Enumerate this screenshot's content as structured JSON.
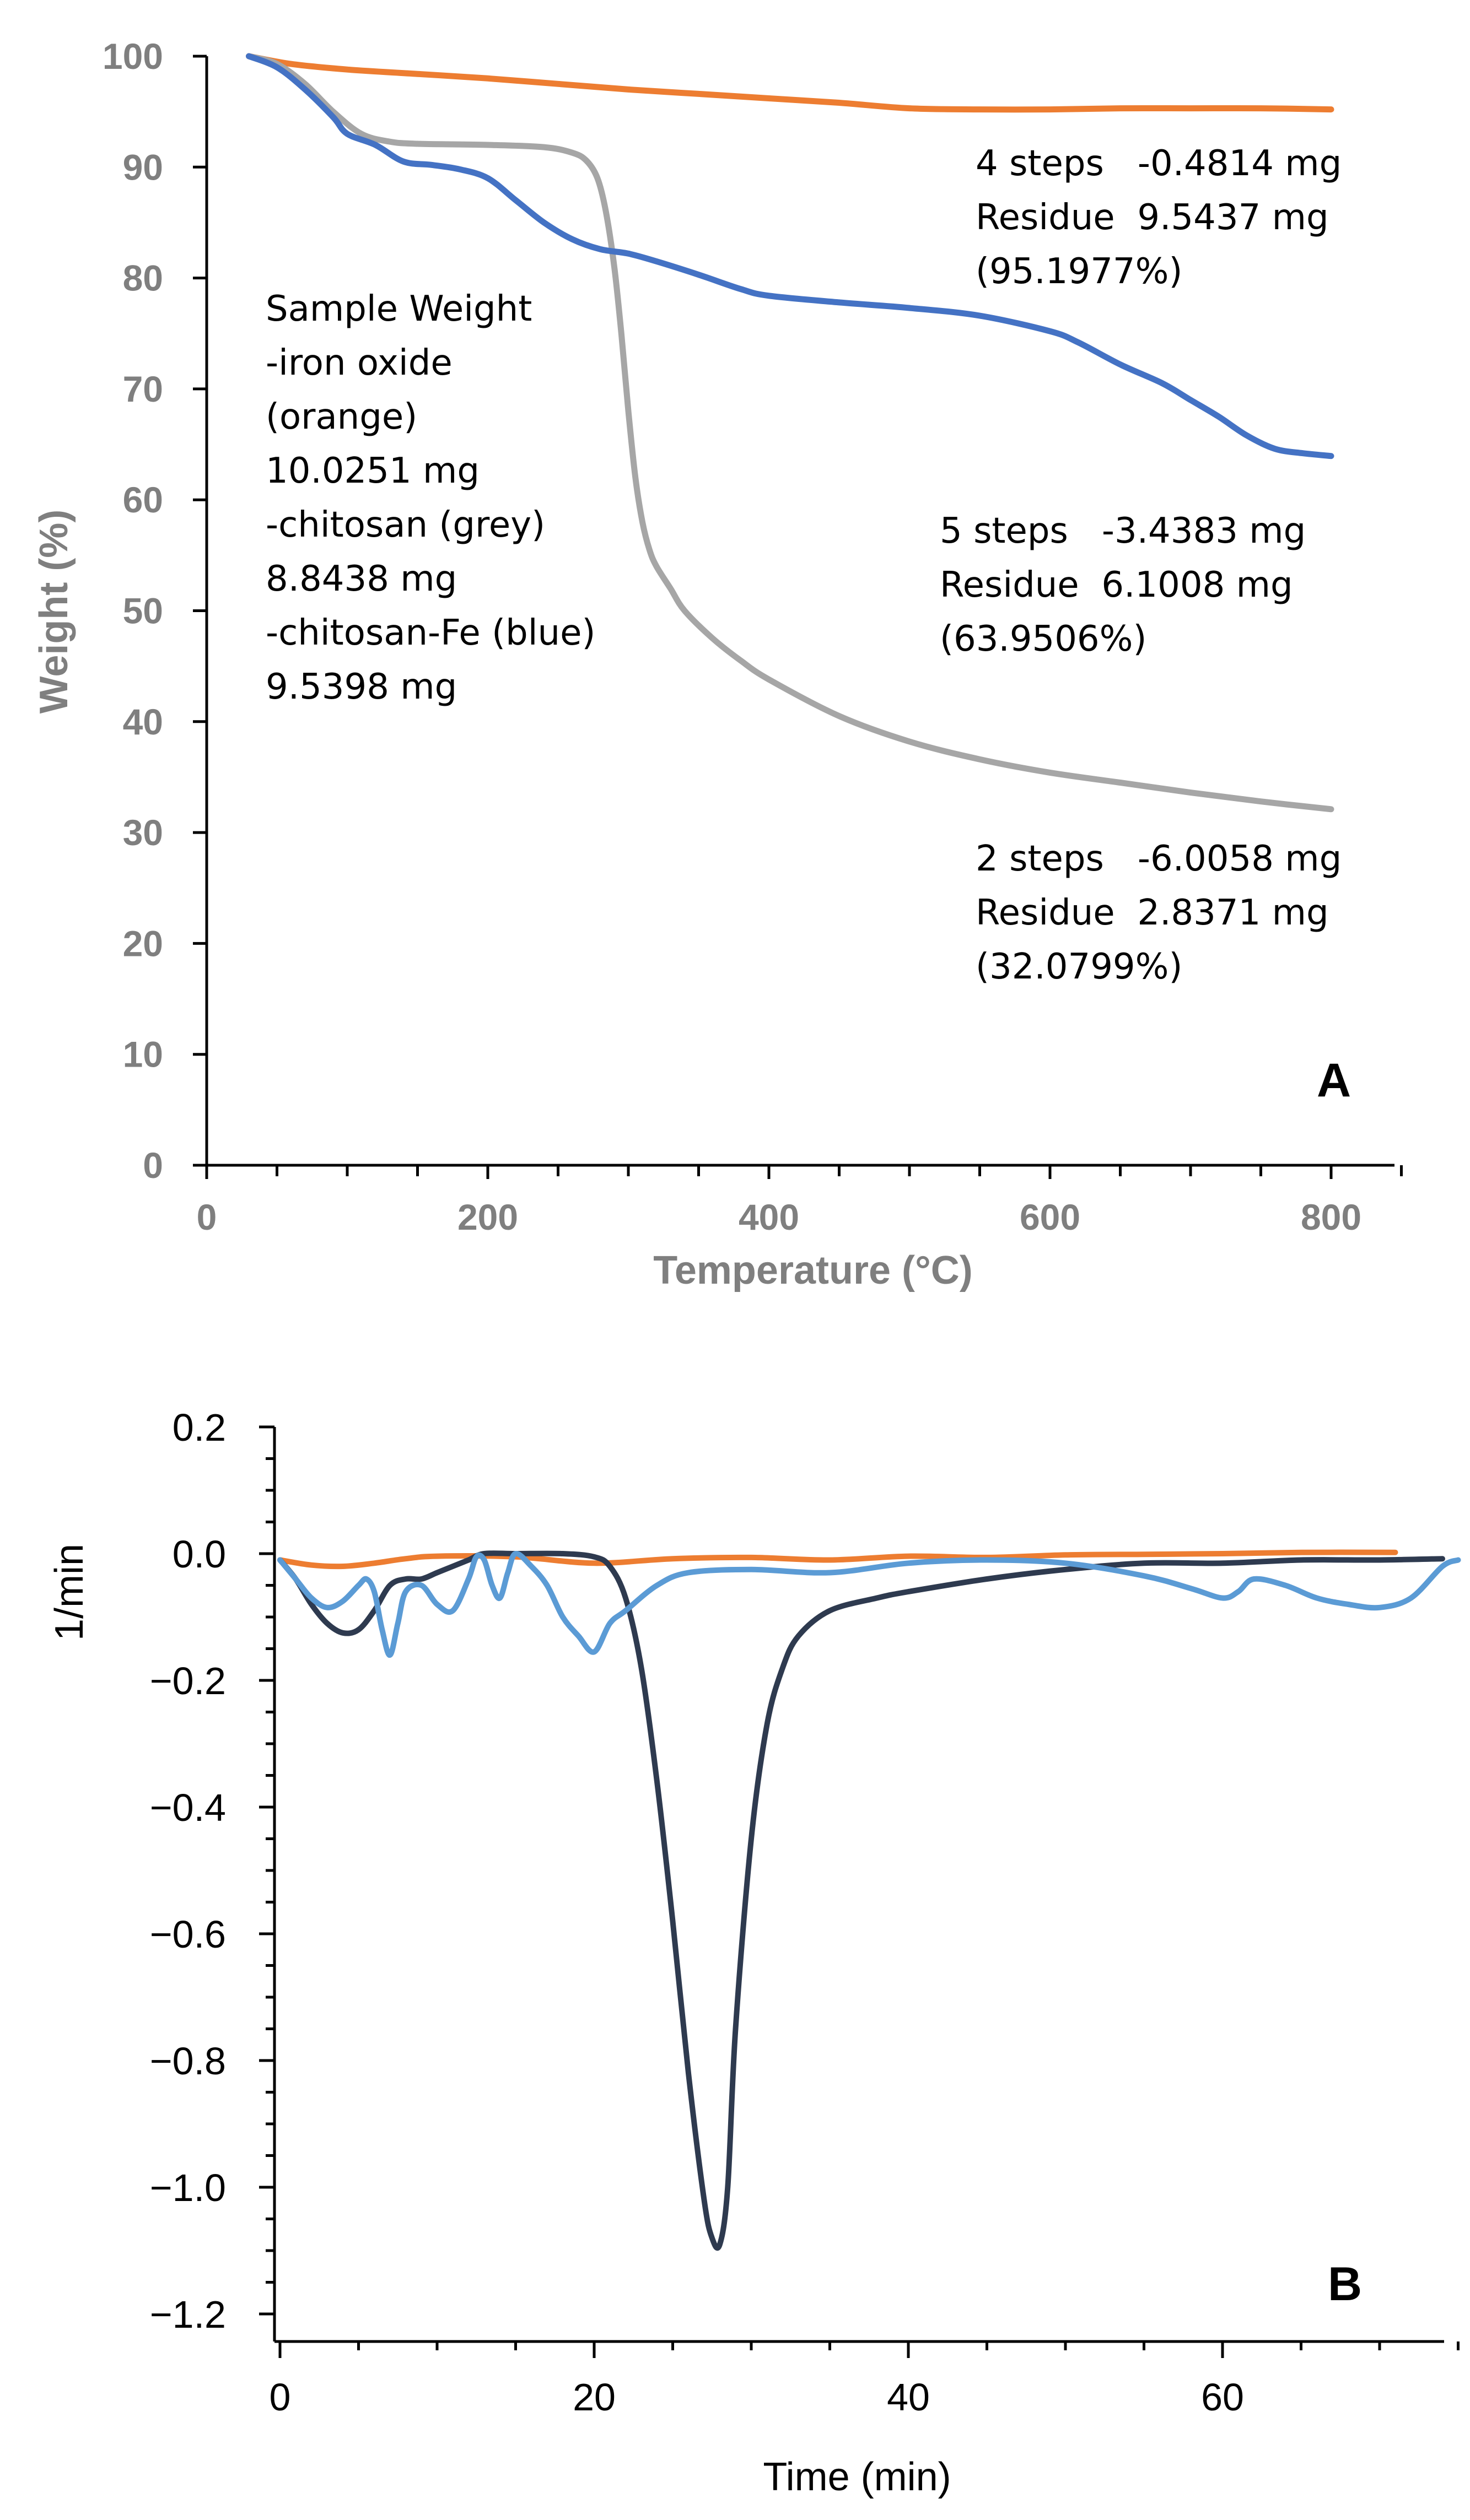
{
  "chart_data": [
    {
      "type": "line",
      "panel": "A",
      "xlabel": "Temperature (°C)",
      "ylabel": "Weight (%)",
      "xlim": [
        0,
        850
      ],
      "ylim": [
        0,
        100
      ],
      "xticks": [
        0,
        200,
        400,
        600,
        800
      ],
      "yticks": [
        0,
        10,
        20,
        30,
        40,
        50,
        60,
        70,
        80,
        90,
        100
      ],
      "series": [
        {
          "name": "iron oxide",
          "color": "#ed7d31",
          "x": [
            30,
            60,
            100,
            150,
            200,
            250,
            300,
            350,
            400,
            450,
            500,
            550,
            600,
            650,
            700,
            750,
            800
          ],
          "y": [
            100,
            99.3,
            98.8,
            98.4,
            98.0,
            97.5,
            97.0,
            96.6,
            96.2,
            95.8,
            95.3,
            95.2,
            95.2,
            95.3,
            95.3,
            95.3,
            95.2
          ]
        },
        {
          "name": "chitosan",
          "color": "#a6a6a6",
          "x": [
            30,
            50,
            70,
            90,
            110,
            130,
            150,
            200,
            240,
            260,
            270,
            278,
            284,
            290,
            295,
            300,
            305,
            310,
            315,
            320,
            330,
            340,
            360,
            380,
            400,
            450,
            500,
            550,
            600,
            650,
            700,
            750,
            800
          ],
          "y": [
            100,
            99.3,
            97.5,
            95,
            93,
            92.3,
            92.1,
            92.0,
            91.8,
            91.3,
            90.6,
            89,
            86,
            81,
            75,
            68,
            62,
            58,
            55.5,
            54,
            52,
            50,
            47.5,
            45.5,
            43.8,
            40.5,
            38.2,
            36.6,
            35.4,
            34.5,
            33.6,
            32.8,
            32.1
          ]
        },
        {
          "name": "chitosan-Fe",
          "color": "#4472c4",
          "x": [
            30,
            50,
            70,
            90,
            100,
            120,
            140,
            160,
            180,
            200,
            220,
            240,
            260,
            280,
            300,
            320,
            350,
            380,
            400,
            450,
            500,
            550,
            600,
            620,
            650,
            680,
            700,
            720,
            740,
            760,
            780,
            800
          ],
          "y": [
            100,
            99,
            97,
            94.5,
            93,
            92,
            90.5,
            90.2,
            89.8,
            89,
            87,
            85,
            83.5,
            82.6,
            82.2,
            81.5,
            80.3,
            79,
            78.4,
            77.8,
            77.3,
            76.6,
            75.2,
            74.2,
            72.2,
            70.5,
            69,
            67.5,
            65.8,
            64.6,
            64.2,
            63.95
          ]
        }
      ],
      "annotations": {
        "sample_weight": [
          "Sample Weight",
          "-iron oxide",
          "(orange)",
          "10.0251 mg",
          "-chitosan (grey)",
          "8.8438 mg",
          "-chitosan-Fe (blue)",
          "9.5398 mg"
        ],
        "orange": [
          "4 steps   -0.4814 mg",
          "Residue  9.5437 mg",
          "(95.1977%)"
        ],
        "blue": [
          "5 steps   -3.4383 mg",
          "Residue  6.1008 mg",
          "(63.9506%)"
        ],
        "grey": [
          "2 steps   -6.0058 mg",
          "Residue  2.8371 mg",
          "(32.0799%)"
        ]
      },
      "panel_label": "A"
    },
    {
      "type": "line",
      "panel": "B",
      "xlabel": "Time (min)",
      "ylabel": "1/min",
      "xlim": [
        0,
        75
      ],
      "ylim": [
        -1.2,
        0.2
      ],
      "xticks": [
        0,
        20,
        40,
        60
      ],
      "yticks": [
        0.2,
        0.0,
        -0.2,
        -0.4,
        -0.6,
        -0.8,
        -1.0,
        -1.2
      ],
      "ytick_labels": [
        "0.2",
        "0.0",
        "−0.2",
        "−0.4",
        "−0.6",
        "−0.8",
        "−1.0",
        "−1.2"
      ],
      "series": [
        {
          "name": "iron oxide",
          "color": "#ed7d31",
          "x": [
            0,
            2,
            4,
            6,
            8,
            10,
            15,
            20,
            25,
            30,
            35,
            40,
            45,
            50,
            55,
            60,
            65,
            71
          ],
          "y": [
            -0.01,
            -0.018,
            -0.02,
            -0.015,
            -0.008,
            -0.004,
            -0.005,
            -0.015,
            -0.008,
            -0.006,
            -0.01,
            -0.004,
            -0.006,
            -0.002,
            -0.001,
            0.0,
            0.002,
            0.002
          ]
        },
        {
          "name": "chitosan",
          "color": "#2e3a4f",
          "x": [
            0,
            1,
            2,
            3,
            4,
            5,
            6,
            7,
            8,
            9,
            10,
            11,
            12,
            13,
            15,
            18,
            20,
            21,
            22,
            23,
            24,
            25,
            26,
            27,
            27.5,
            28,
            28.5,
            29,
            30,
            31,
            32,
            33,
            35,
            38,
            40,
            45,
            50,
            55,
            60,
            65,
            70,
            74
          ],
          "y": [
            -0.01,
            -0.04,
            -0.08,
            -0.11,
            -0.125,
            -0.12,
            -0.09,
            -0.05,
            -0.04,
            -0.04,
            -0.03,
            -0.02,
            -0.01,
            0.0,
            0.0,
            0.0,
            -0.005,
            -0.02,
            -0.07,
            -0.18,
            -0.36,
            -0.58,
            -0.82,
            -1.02,
            -1.08,
            -1.09,
            -1.0,
            -0.75,
            -0.45,
            -0.27,
            -0.18,
            -0.13,
            -0.09,
            -0.07,
            -0.06,
            -0.04,
            -0.025,
            -0.015,
            -0.015,
            -0.01,
            -0.01,
            -0.008
          ]
        },
        {
          "name": "chitosan-Fe",
          "color": "#5b9bd5",
          "x": [
            0,
            1,
            2,
            3,
            4,
            5,
            5.5,
            6,
            6.5,
            7,
            7.5,
            8,
            9,
            10,
            11,
            12,
            12.5,
            13,
            13.5,
            14,
            14.5,
            15,
            16,
            17,
            18,
            19,
            20,
            21,
            22,
            24,
            26,
            30,
            35,
            40,
            45,
            50,
            55,
            58,
            60,
            61,
            62,
            64,
            66,
            68,
            70,
            72,
            74,
            75
          ],
          "y": [
            -0.01,
            -0.04,
            -0.07,
            -0.085,
            -0.075,
            -0.05,
            -0.04,
            -0.06,
            -0.12,
            -0.16,
            -0.11,
            -0.06,
            -0.05,
            -0.08,
            -0.09,
            -0.04,
            -0.005,
            -0.01,
            -0.05,
            -0.07,
            -0.03,
            0.0,
            -0.02,
            -0.05,
            -0.1,
            -0.13,
            -0.155,
            -0.11,
            -0.09,
            -0.05,
            -0.03,
            -0.025,
            -0.03,
            -0.015,
            -0.01,
            -0.015,
            -0.035,
            -0.055,
            -0.07,
            -0.06,
            -0.04,
            -0.05,
            -0.07,
            -0.08,
            -0.085,
            -0.07,
            -0.02,
            -0.01
          ]
        }
      ],
      "panel_label": "B"
    }
  ]
}
